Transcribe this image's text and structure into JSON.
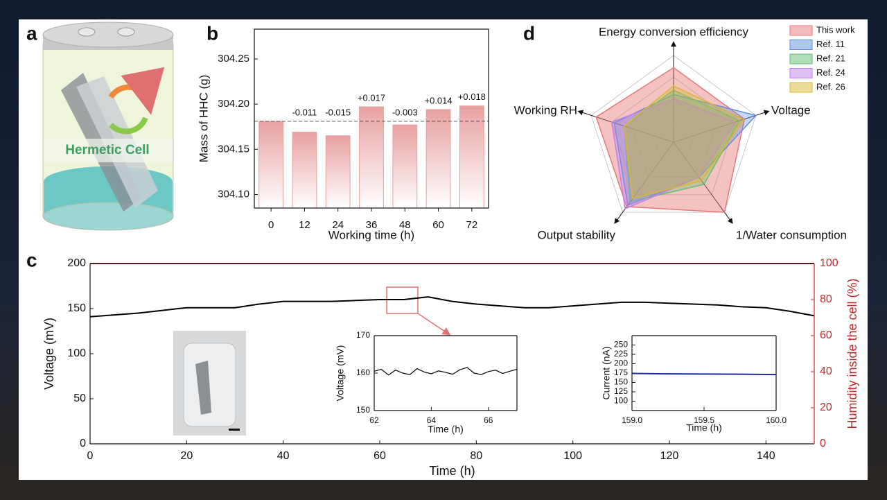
{
  "figure": {
    "panel_label": "a",
    "cell_text": "Hermetic Cell"
  },
  "chart_data": [
    {
      "type": "bar",
      "panel": "b",
      "y_label": "Mass of HHC (g)",
      "x_label": "Working time (h)",
      "categories": [
        "0",
        "12",
        "24",
        "36",
        "48",
        "60",
        "72"
      ],
      "values": [
        304.181,
        304.169,
        304.165,
        304.197,
        304.177,
        304.194,
        304.198
      ],
      "color": "#e8a0a0",
      "reference_line": 304.181,
      "annotations": [
        {
          "category": "12",
          "text": "-0.011"
        },
        {
          "category": "24",
          "text": "-0.015"
        },
        {
          "category": "36",
          "text": "+0.017"
        },
        {
          "category": "48",
          "text": "-0.003"
        },
        {
          "category": "60",
          "text": "+0.014"
        },
        {
          "category": "72",
          "text": "+0.018"
        }
      ],
      "ylim": [
        304.085,
        304.283
      ],
      "yticks": [
        {
          "value": 304.1,
          "label": "304.10"
        },
        {
          "value": 304.15,
          "label": "304.15"
        },
        {
          "value": 304.2,
          "label": "304.20"
        },
        {
          "value": 304.25,
          "label": "304.25"
        }
      ]
    },
    {
      "type": "radar",
      "panel": "d",
      "axes": [
        "Energy conversion efficiency",
        "Voltage",
        "1/Water consumption",
        "Output stability",
        "Working RH"
      ],
      "rlim": [
        0,
        1
      ],
      "rticks": [
        0.25,
        0.5,
        0.75,
        1
      ],
      "series": [
        {
          "name": "This work",
          "color": "#e87878",
          "values": [
            0.86,
            0.86,
            1.0,
            0.92,
            0.94
          ]
        },
        {
          "name": "Ref. 11",
          "color": "#5b8fe0",
          "values": [
            0.55,
            1.0,
            0.5,
            0.9,
            0.72
          ]
        },
        {
          "name": "Ref. 21",
          "color": "#62c070",
          "values": [
            0.6,
            0.8,
            0.6,
            0.85,
            0.6
          ]
        },
        {
          "name": "Ref. 24",
          "color": "#c080e8",
          "values": [
            0.5,
            0.75,
            0.5,
            0.95,
            0.75
          ]
        },
        {
          "name": "Ref. 26",
          "color": "#d8b830",
          "values": [
            0.65,
            0.85,
            0.55,
            0.8,
            0.6
          ]
        }
      ]
    },
    {
      "type": "line",
      "panel": "c",
      "x_label": "Time (h)",
      "y_label": "Voltage (mV)",
      "y2_label": "Humidity inside the cell (%)",
      "x": [
        0,
        5,
        10,
        15,
        20,
        25,
        30,
        35,
        40,
        45,
        50,
        55,
        60,
        65,
        70,
        75,
        80,
        85,
        90,
        95,
        100,
        105,
        110,
        115,
        120,
        125,
        130,
        135,
        140,
        145,
        150
      ],
      "series": [
        {
          "name": "Voltage",
          "color": "#000000",
          "values": [
            141,
            143,
            145,
            148,
            151,
            151,
            151,
            155,
            158,
            158,
            158,
            159,
            160,
            160,
            163,
            158,
            155,
            153,
            151,
            151,
            153,
            155,
            157,
            157,
            156,
            155,
            154,
            152,
            151,
            147,
            142
          ]
        },
        {
          "name": "Humidity",
          "color": "#c0282a",
          "axis": "y2",
          "values": [
            100,
            100,
            100,
            100,
            100,
            100,
            100,
            100,
            100,
            100,
            100,
            100,
            100,
            100,
            100,
            100,
            100,
            100,
            100,
            100,
            100,
            100,
            100,
            100,
            100,
            100,
            100,
            100,
            100,
            100,
            100
          ]
        }
      ],
      "xlim": [
        0,
        150
      ],
      "xticks": [
        0,
        20,
        40,
        60,
        80,
        100,
        120,
        140
      ],
      "ylim": [
        0,
        200
      ],
      "yticks": [
        0,
        50,
        100,
        150,
        200
      ],
      "y2lim": [
        0,
        100
      ],
      "y2ticks": [
        0,
        20,
        40,
        60,
        80,
        100
      ]
    },
    {
      "type": "line",
      "x_label": "Time (h)",
      "y_label": "Voltage (mV)",
      "x": [
        62,
        62.25,
        62.5,
        62.75,
        63,
        63.25,
        63.5,
        63.75,
        64,
        64.25,
        64.5,
        64.75,
        65,
        65.25,
        65.5,
        65.75,
        66,
        66.25,
        66.5,
        66.75,
        67
      ],
      "series": [
        {
          "name": "Voltage",
          "color": "#000000",
          "values": [
            160.5,
            161,
            159.5,
            160.8,
            160,
            159.6,
            161.2,
            160.3,
            159.8,
            160.6,
            160.2,
            159.7,
            160.9,
            161.5,
            160,
            159.6,
            160.4,
            160.8,
            159.9,
            160.5,
            161
          ]
        }
      ],
      "xlim": [
        62,
        67
      ],
      "xticks": [
        62,
        64,
        66
      ],
      "ylim": [
        150,
        170
      ],
      "yticks": [
        150,
        160,
        170
      ]
    },
    {
      "type": "line",
      "x_label": "Time (h)",
      "y_label": "Current (nA)",
      "x": [
        159,
        159.25,
        159.5,
        159.75,
        160
      ],
      "series": [
        {
          "name": "Current",
          "color": "#1a2fa8",
          "values": [
            174,
            173,
            172.5,
            172,
            171
          ]
        }
      ],
      "xlim": [
        159,
        160
      ],
      "xticks": [
        {
          "value": 159,
          "label": "159.0"
        },
        {
          "value": 159.5,
          "label": "159.5"
        },
        {
          "value": 160,
          "label": "160.0"
        }
      ],
      "ylim": [
        75,
        275
      ],
      "yticks": [
        100,
        125,
        150,
        175,
        200,
        225,
        250
      ]
    }
  ]
}
